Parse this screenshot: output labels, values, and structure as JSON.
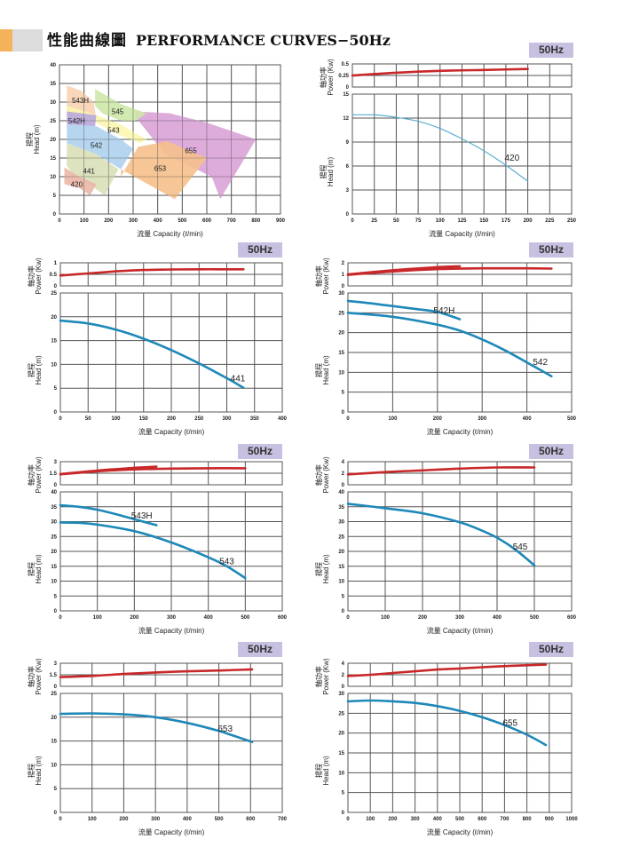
{
  "header": {
    "title_zh": "性能曲線圖",
    "title_en": "PERFORMANCE CURVES−50Hz"
  },
  "colors": {
    "power_curve": "#c8282a",
    "head_curve_420": "#5aaed0",
    "head_curve": "#1e88b8",
    "badge_bg": "#c8c0e0",
    "grid": "#555555",
    "header_orange": "#f4b35a",
    "header_gray": "#dcdcdc"
  },
  "axis_labels": {
    "x": "流量 Capacity (ℓ/min)",
    "head_y_zh": "揚程",
    "head_y_en": "Head (m)",
    "power_y_zh": "軸功率",
    "power_y_en": "Power (Kw)"
  },
  "chart_data": [
    {
      "id": "overview",
      "type": "area",
      "title": "Operating ranges",
      "xlabel": "流量 Capacity (ℓ/min)",
      "ylabel": "揚程 Head (m)",
      "xlim": [
        0,
        900
      ],
      "ylim": [
        0,
        40
      ],
      "xticks": [
        0,
        100,
        200,
        300,
        400,
        500,
        600,
        700,
        800,
        900
      ],
      "yticks": [
        0,
        5,
        10,
        15,
        20,
        25,
        30,
        35,
        40
      ],
      "grid": true,
      "regions": [
        {
          "name": "655",
          "color": "#d9a3d6",
          "polygon": [
            [
              310,
              27.5
            ],
            [
              450,
              27
            ],
            [
              600,
              24.5
            ],
            [
              800,
              20
            ],
            [
              655,
              4
            ],
            [
              620,
              10
            ],
            [
              430,
              16
            ],
            [
              310,
              26
            ]
          ],
          "label_at": [
            535,
            17
          ]
        },
        {
          "name": "653",
          "color": "#f5c08c",
          "polygon": [
            [
              250,
              10
            ],
            [
              320,
              18
            ],
            [
              440,
              19.5
            ],
            [
              600,
              15
            ],
            [
              470,
              4
            ],
            [
              250,
              12
            ]
          ],
          "label_at": [
            410,
            12.3
          ]
        },
        {
          "name": "545",
          "color": "#cde7a8",
          "polygon": [
            [
              145,
              33.5
            ],
            [
              250,
              29.5
            ],
            [
              355,
              27
            ],
            [
              310,
              25
            ],
            [
              250,
              25
            ],
            [
              175,
              27
            ],
            [
              145,
              29
            ]
          ],
          "label_at": [
            237,
            27.5
          ]
        },
        {
          "name": "543H",
          "color": "#f8d3b3",
          "polygon": [
            [
              30,
              34.5
            ],
            [
              90,
              33
            ],
            [
              140,
              30
            ],
            [
              150,
              25
            ],
            [
              30,
              27
            ]
          ],
          "label_at": [
            85,
            30.5
          ]
        },
        {
          "name": "543",
          "color": "#fbf6b0",
          "polygon": [
            [
              30,
              29
            ],
            [
              130,
              27
            ],
            [
              250,
              24
            ],
            [
              355,
              20
            ],
            [
              330,
              19
            ],
            [
              250,
              21
            ],
            [
              150,
              24.5
            ],
            [
              30,
              26
            ]
          ],
          "label_at": [
            220,
            22.5
          ]
        },
        {
          "name": "542H",
          "color": "#b9a7dc",
          "polygon": [
            [
              30,
              27.5
            ],
            [
              150,
              26.5
            ],
            [
              145,
              23.5
            ],
            [
              30,
              24
            ]
          ],
          "label_at": [
            70,
            25
          ]
        },
        {
          "name": "542",
          "color": "#aed2ee",
          "polygon": [
            [
              30,
              24
            ],
            [
              150,
              23.5
            ],
            [
              250,
              20
            ],
            [
              300,
              17.5
            ],
            [
              250,
              12
            ],
            [
              200,
              14
            ],
            [
              150,
              16
            ],
            [
              30,
              19
            ]
          ],
          "label_at": [
            150,
            18.5
          ]
        },
        {
          "name": "441",
          "color": "#d9dfb8",
          "polygon": [
            [
              30,
              19
            ],
            [
              150,
              16
            ],
            [
              240,
              12
            ],
            [
              200,
              7
            ],
            [
              185,
              5
            ],
            [
              120,
              8
            ],
            [
              60,
              10
            ],
            [
              30,
              13
            ]
          ],
          "label_at": [
            120,
            11.5
          ]
        },
        {
          "name": "420",
          "color": "#ebb7a6",
          "polygon": [
            [
              20,
              12.5
            ],
            [
              80,
              10
            ],
            [
              150,
              8
            ],
            [
              125,
              5
            ],
            [
              80,
              7
            ],
            [
              20,
              8
            ]
          ],
          "label_at": [
            70,
            8
          ]
        }
      ]
    },
    {
      "id": "420",
      "type": "line",
      "badge": "50Hz",
      "xlabel": "流量 Capacity (ℓ/min)",
      "xlim": [
        0,
        250
      ],
      "xticks": [
        0,
        25,
        50,
        75,
        100,
        125,
        150,
        175,
        200,
        225,
        250
      ],
      "power": {
        "ylim": [
          0,
          0.5
        ],
        "yticks": [
          0,
          0.25,
          0.5
        ],
        "x": [
          0,
          50,
          100,
          150,
          200
        ],
        "y": [
          0.25,
          0.31,
          0.35,
          0.37,
          0.39
        ]
      },
      "head": {
        "ylim": [
          0,
          15
        ],
        "yticks": [
          0,
          3,
          6,
          9,
          12,
          15
        ],
        "series": [
          {
            "name": "420",
            "x": [
              0,
              25,
              50,
              75,
              100,
              125,
              150,
              175,
              200
            ],
            "y": [
              12.4,
              12.4,
              12.1,
              11.6,
              10.7,
              9.4,
              7.9,
              6.1,
              4.1
            ],
            "label_at": [
              182,
              7
            ]
          }
        ]
      }
    },
    {
      "id": "441",
      "type": "line",
      "badge": "50Hz",
      "xlabel": "流量 Capacity (ℓ/min)",
      "xlim": [
        0,
        400
      ],
      "xticks": [
        0,
        50,
        100,
        150,
        200,
        250,
        300,
        350,
        400
      ],
      "power": {
        "ylim": [
          0,
          1
        ],
        "yticks": [
          0,
          0.5,
          1
        ],
        "x": [
          0,
          50,
          100,
          150,
          200,
          250,
          300,
          330
        ],
        "y": [
          0.45,
          0.54,
          0.63,
          0.69,
          0.71,
          0.72,
          0.72,
          0.72
        ]
      },
      "head": {
        "ylim": [
          0,
          25
        ],
        "yticks": [
          0,
          5,
          10,
          15,
          20,
          25
        ],
        "series": [
          {
            "name": "441",
            "x": [
              0,
              50,
              100,
              150,
              200,
              250,
              300,
              330
            ],
            "y": [
              19.2,
              18.6,
              17.3,
              15.4,
              13.0,
              10.2,
              7.1,
              5.1
            ],
            "label_at": [
              320,
              7
            ]
          }
        ]
      }
    },
    {
      "id": "542",
      "type": "line",
      "badge": "50Hz",
      "xlabel": "流量 Capacity (ℓ/min)",
      "xlim": [
        0,
        500
      ],
      "xticks": [
        0,
        100,
        200,
        300,
        400,
        500
      ],
      "power": {
        "ylim": [
          0,
          2
        ],
        "yticks": [
          0,
          1,
          2
        ],
        "series": [
          {
            "name": "542H",
            "x": [
              0,
              100,
              200,
              250
            ],
            "y": [
              1.0,
              1.35,
              1.62,
              1.7
            ]
          },
          {
            "name": "542",
            "x": [
              0,
              100,
              200,
              300,
              400,
              455
            ],
            "y": [
              0.95,
              1.25,
              1.45,
              1.52,
              1.52,
              1.5
            ]
          }
        ]
      },
      "head": {
        "ylim": [
          0,
          30
        ],
        "yticks": [
          0,
          5,
          10,
          15,
          20,
          25,
          30
        ],
        "series": [
          {
            "name": "542H",
            "x": [
              0,
              50,
              100,
              150,
              200,
              250
            ],
            "y": [
              28,
              27.4,
              26.7,
              26.0,
              25.2,
              23.4
            ],
            "label_at": [
              215,
              25.5
            ]
          },
          {
            "name": "542",
            "x": [
              0,
              100,
              200,
              250,
              300,
              350,
              400,
              455
            ],
            "y": [
              25,
              24,
              22,
              20.5,
              18.3,
              15.6,
              12.5,
              9
            ],
            "label_at": [
              430,
              12.5
            ]
          }
        ]
      }
    },
    {
      "id": "543",
      "type": "line",
      "badge": "50Hz",
      "xlabel": "流量 Capacity (ℓ/min)",
      "xlim": [
        0,
        600
      ],
      "xticks": [
        0,
        100,
        200,
        300,
        400,
        500,
        600
      ],
      "power": {
        "ylim": [
          0,
          3
        ],
        "yticks": [
          0,
          1.5,
          3
        ],
        "series": [
          {
            "name": "543H",
            "x": [
              0,
              100,
              200,
              260
            ],
            "y": [
              1.4,
              1.85,
              2.2,
              2.35
            ]
          },
          {
            "name": "543",
            "x": [
              0,
              100,
              200,
              300,
              400,
              500
            ],
            "y": [
              1.35,
              1.75,
              2.0,
              2.1,
              2.15,
              2.15
            ]
          }
        ]
      },
      "head": {
        "ylim": [
          0,
          40
        ],
        "yticks": [
          0,
          5,
          10,
          15,
          20,
          25,
          30,
          35,
          40
        ],
        "series": [
          {
            "name": "543H",
            "x": [
              0,
              50,
              100,
              150,
              200,
              260
            ],
            "y": [
              35.5,
              35,
              34,
              32.5,
              30.8,
              28.8
            ],
            "label_at": [
              220,
              32
            ]
          },
          {
            "name": "543",
            "x": [
              0,
              50,
              100,
              200,
              300,
              400,
              450,
              500
            ],
            "y": [
              29.7,
              29.6,
              29,
              26.8,
              23,
              18,
              15,
              11
            ],
            "label_at": [
              450,
              16.5
            ]
          }
        ]
      }
    },
    {
      "id": "545",
      "type": "line",
      "badge": "50Hz",
      "xlabel": "流量 Capacity (ℓ/min)",
      "xlim": [
        0,
        600
      ],
      "xticks": [
        0,
        100,
        200,
        300,
        400,
        500,
        600
      ],
      "power": {
        "ylim": [
          0,
          4
        ],
        "yticks": [
          0,
          2,
          4
        ],
        "x": [
          0,
          100,
          200,
          300,
          400,
          500
        ],
        "y": [
          1.8,
          2.2,
          2.5,
          2.8,
          3.0,
          3.0
        ]
      },
      "head": {
        "ylim": [
          0,
          40
        ],
        "yticks": [
          0,
          5,
          10,
          15,
          20,
          25,
          30,
          35,
          40
        ],
        "series": [
          {
            "name": "545",
            "x": [
              0,
              100,
              200,
              300,
              350,
              400,
              450,
              500
            ],
            "y": [
              36,
              34.5,
              32.8,
              29.8,
              27.5,
              24.6,
              20.5,
              15.3
            ],
            "label_at": [
              462,
              21.5
            ]
          }
        ]
      }
    },
    {
      "id": "653",
      "type": "line",
      "badge": "50Hz",
      "xlabel": "流量 Capacity (ℓ/min)",
      "xlim": [
        0,
        700
      ],
      "xticks": [
        0,
        100,
        200,
        300,
        400,
        500,
        600,
        700
      ],
      "power": {
        "ylim": [
          0,
          3
        ],
        "yticks": [
          0,
          1.5,
          3
        ],
        "x": [
          0,
          100,
          200,
          300,
          400,
          500,
          605
        ],
        "y": [
          1.2,
          1.35,
          1.6,
          1.8,
          1.95,
          2.05,
          2.2
        ]
      },
      "head": {
        "ylim": [
          0,
          25
        ],
        "yticks": [
          0,
          5,
          10,
          15,
          20,
          25
        ],
        "series": [
          {
            "name": "653",
            "x": [
              0,
              100,
              200,
              300,
              400,
              500,
              605
            ],
            "y": [
              20.7,
              20.8,
              20.6,
              20.0,
              18.8,
              17.1,
              14.8
            ],
            "label_at": [
              520,
              17.5
            ]
          }
        ]
      }
    },
    {
      "id": "655",
      "type": "line",
      "badge": "50Hz",
      "xlabel": "流量 Capacity (ℓ/min)",
      "xlim": [
        0,
        1000
      ],
      "xticks": [
        0,
        100,
        200,
        300,
        400,
        500,
        600,
        700,
        800,
        900,
        1000
      ],
      "power": {
        "ylim": [
          0,
          4
        ],
        "yticks": [
          0,
          2,
          4
        ],
        "x": [
          0,
          100,
          200,
          300,
          400,
          500,
          600,
          700,
          800,
          885
        ],
        "y": [
          1.8,
          2.0,
          2.3,
          2.6,
          2.9,
          3.1,
          3.3,
          3.5,
          3.65,
          3.75
        ]
      },
      "head": {
        "ylim": [
          0,
          30
        ],
        "yticks": [
          0,
          5,
          10,
          15,
          20,
          25,
          30
        ],
        "series": [
          {
            "name": "655",
            "x": [
              0,
              100,
              200,
              300,
              400,
              500,
              600,
              700,
              800,
              885
            ],
            "y": [
              28,
              28.2,
              28,
              27.6,
              26.8,
              25.6,
              24,
              22,
              19.6,
              17
            ],
            "label_at": [
              725,
              22.5
            ]
          }
        ]
      }
    }
  ]
}
